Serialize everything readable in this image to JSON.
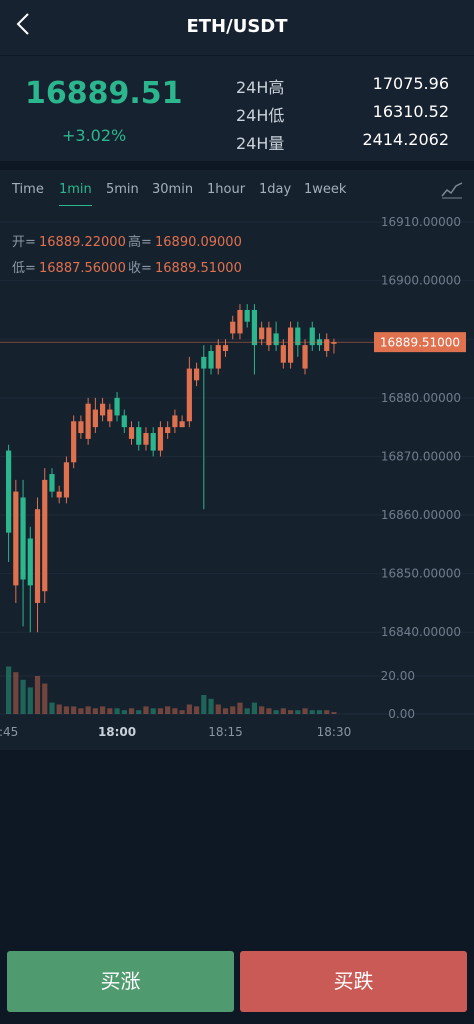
{
  "header": {
    "title": "ETH/USDT"
  },
  "ticker": {
    "price": "16889.51",
    "change": "+3.02%",
    "stats": [
      {
        "label": "24H高",
        "value": "17075.96"
      },
      {
        "label": "24H低",
        "value": "16310.52"
      },
      {
        "label": "24H量",
        "value": "2414.2062"
      }
    ]
  },
  "tabs": {
    "items": [
      "Time",
      "1min",
      "5min",
      "30min",
      "1hour",
      "1day",
      "1week"
    ],
    "active": 1
  },
  "info": [
    {
      "label": "开=",
      "value": "16889.22000"
    },
    {
      "label": "高=",
      "value": "16890.09000"
    },
    {
      "label": "低=",
      "value": "16887.56000"
    },
    {
      "label": "收=",
      "value": "16889.51000"
    }
  ],
  "chart_data": {
    "type": "candlestick",
    "categories": [
      ":45",
      null,
      null,
      null,
      null,
      null,
      null,
      null,
      null,
      null,
      null,
      null,
      null,
      null,
      null,
      "18:00",
      null,
      null,
      null,
      null,
      null,
      null,
      null,
      null,
      null,
      null,
      null,
      null,
      null,
      null,
      "18:15",
      null,
      null,
      null,
      null,
      null,
      null,
      null,
      null,
      null,
      null,
      null,
      null,
      null,
      null,
      "18:30"
    ],
    "open": [
      16871,
      16848,
      16863,
      16856,
      16845,
      16847,
      16867,
      16863,
      16863,
      16869,
      16874,
      16873,
      16875,
      16877,
      16876,
      16880,
      16877,
      16873,
      16875,
      16872,
      16874,
      16871,
      16874,
      16875,
      16875,
      16876,
      16883,
      16887,
      16888,
      16885,
      16888,
      16891,
      16891,
      16895,
      16895,
      16890,
      16889,
      16891,
      16886,
      16886,
      16892,
      16885,
      16892,
      16890,
      16888,
      16889.22
    ],
    "high": [
      16872,
      16866,
      16866,
      16858,
      16863,
      16868,
      16868,
      16865,
      16870,
      16877,
      16877,
      16880,
      16880,
      16880,
      16879,
      16881,
      16878,
      16876,
      16876,
      16875,
      16875,
      16876,
      16876,
      16878,
      16877,
      16887,
      16886,
      16889,
      16889,
      16890,
      16890,
      16894,
      16896,
      16896,
      16896,
      16893,
      16893,
      16893,
      16890,
      16893,
      16893,
      16890,
      16893,
      16891,
      16891,
      16890.09
    ],
    "low": [
      16852,
      16845,
      16841,
      16840,
      16840,
      16845,
      16863,
      16862,
      16862,
      16868,
      16873,
      16872,
      16874,
      16876,
      16875,
      16876,
      16874,
      16872,
      16871,
      16871,
      16870,
      16870,
      16873,
      16874,
      16875,
      16875,
      16882,
      16861,
      16884,
      16884,
      16887,
      16890,
      16890,
      16892,
      16884,
      16889,
      16888,
      16888,
      16885,
      16885,
      16887,
      16884,
      16888,
      16888,
      16887,
      16887.56
    ],
    "close": [
      16857,
      16864,
      16849,
      16848,
      16861,
      16866,
      16864,
      16864,
      16869,
      16876,
      16876,
      16879,
      16878,
      16879,
      16878,
      16877,
      16875,
      16875,
      16872,
      16874,
      16871,
      16875,
      16875,
      16877,
      16876,
      16885,
      16885,
      16885,
      16885,
      16889,
      16889,
      16893,
      16895,
      16893,
      16889,
      16892,
      16892,
      16889,
      16889,
      16892,
      16889,
      16889,
      16889,
      16889,
      16890,
      16889.51
    ],
    "volume": [
      25,
      22,
      18,
      14,
      20,
      16,
      6,
      5,
      4,
      4,
      3,
      4,
      3,
      4,
      3,
      3,
      2,
      3,
      2,
      4,
      3,
      3,
      4,
      3,
      2,
      5,
      4,
      10,
      8,
      5,
      3,
      4,
      6,
      3,
      6,
      4,
      3,
      2,
      3,
      2,
      2,
      3,
      2,
      2,
      2,
      1
    ],
    "up_color": "#e0714f",
    "down_color": "#2bb68d",
    "ylim": [
      16836.8,
      16912.4
    ],
    "yticks": [
      {
        "value": 16840,
        "label": "16840.00000"
      },
      {
        "value": 16850,
        "label": "16850.00000"
      },
      {
        "value": 16860,
        "label": "16860.00000"
      },
      {
        "value": 16870,
        "label": "16870.00000"
      },
      {
        "value": 16880,
        "label": "16880.00000"
      },
      {
        "value": 16890,
        "label": "16890.00000"
      },
      {
        "value": 16900,
        "label": "16900.00000"
      },
      {
        "value": 16910,
        "label": "16910.00000"
      }
    ],
    "last_price": {
      "value": 16889.51,
      "label": "16889.51000"
    },
    "vol_ylim": [
      0,
      25
    ],
    "vol_ticks": [
      {
        "value": 20,
        "label": "20.00"
      },
      {
        "value": 0,
        "label": "0.00"
      }
    ],
    "grid": true
  },
  "buttons": [
    "买涨",
    "买跌"
  ]
}
